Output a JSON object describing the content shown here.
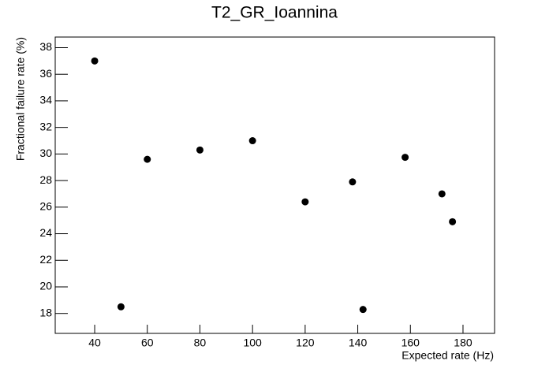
{
  "chart_data": {
    "type": "scatter",
    "title": "T2_GR_Ioannina",
    "x_label": "Expected rate (Hz)",
    "y_label": "Fractional failure rate (%)",
    "x": [
      40,
      50,
      60,
      80,
      100,
      120,
      138,
      142,
      158,
      172,
      176
    ],
    "values": [
      37,
      18.5,
      29.6,
      30.3,
      31,
      26.4,
      27.9,
      18.3,
      29.75,
      27,
      24.9
    ],
    "color": "#000000",
    "xlim": [
      25,
      192
    ],
    "ylim": [
      16.5,
      38.8
    ],
    "xticks": [
      40,
      60,
      80,
      100,
      120,
      140,
      160,
      180
    ],
    "yticks": [
      18,
      20,
      22,
      24,
      26,
      28,
      30,
      32,
      34,
      36,
      38
    ]
  }
}
